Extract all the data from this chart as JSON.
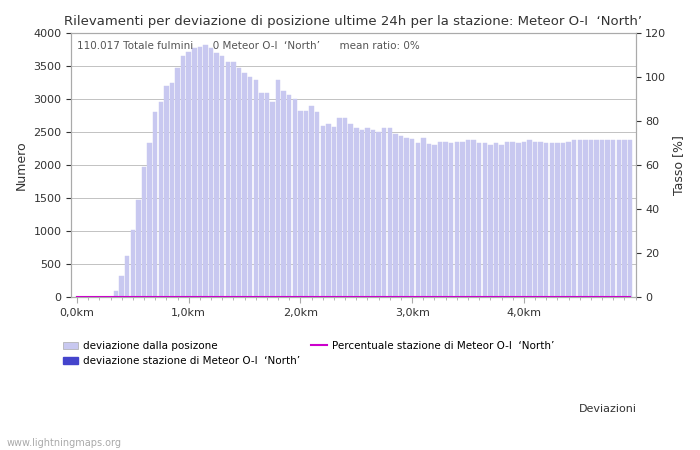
{
  "title": "Rilevamenti per deviazione di posizione ultime 24h per la stazione: Meteor O-I  ‘North’",
  "xlabel": "Deviazioni",
  "ylabel_left": "Numero",
  "ylabel_right": "Tasso [%]",
  "annotation": "110.017 Totale fulmini      0 Meteor O-I  ‘North’      mean ratio: 0%",
  "watermark": "www.lightningmaps.org",
  "bar_color_light": "#c8c8f0",
  "bar_color_dark": "#4444cc",
  "line_color": "#cc00cc",
  "ylim_left": [
    0,
    4000
  ],
  "ylim_right": [
    0,
    120
  ],
  "xtick_labels": [
    "0,0km",
    "1,0km",
    "2,0km",
    "3,0km",
    "4,0km"
  ],
  "xtick_positions": [
    0,
    20,
    40,
    60,
    80
  ],
  "ytick_left": [
    0,
    500,
    1000,
    1500,
    2000,
    2500,
    3000,
    3500,
    4000
  ],
  "ytick_right": [
    0,
    20,
    40,
    60,
    80,
    100,
    120
  ],
  "bar_values": [
    0,
    0,
    0,
    0,
    0,
    0,
    0,
    100,
    320,
    620,
    1020,
    1480,
    1970,
    2340,
    2800,
    2960,
    3200,
    3250,
    3480,
    3660,
    3720,
    3780,
    3800,
    3820,
    3780,
    3700,
    3660,
    3560,
    3560,
    3480,
    3400,
    3340,
    3300,
    3090,
    3100,
    2960,
    3300,
    3120,
    3060,
    3000,
    2820,
    2820,
    2900,
    2800,
    2600,
    2620,
    2580,
    2720,
    2720,
    2620,
    2560,
    2540,
    2560,
    2540,
    2500,
    2560,
    2560,
    2480,
    2440,
    2420,
    2400,
    2340,
    2420,
    2320,
    2300,
    2360,
    2360,
    2340,
    2360,
    2360,
    2380,
    2380,
    2340,
    2340,
    2300,
    2340,
    2300,
    2360,
    2360,
    2340,
    2360,
    2380,
    2360,
    2360,
    2340,
    2340,
    2340,
    2340,
    2360,
    2380,
    2380,
    2380,
    2380,
    2380,
    2380,
    2380,
    2380,
    2380,
    2380,
    2380
  ],
  "num_bars": 100,
  "bar_width": 0.8
}
